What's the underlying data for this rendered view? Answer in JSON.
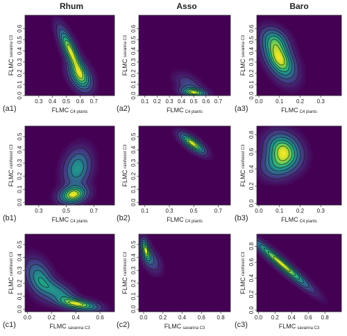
{
  "figure": {
    "column_titles": [
      "Rhum",
      "Asso",
      "Baro"
    ],
    "colors": {
      "background": "#440154",
      "viridis": [
        "#440154",
        "#46337e",
        "#365c8d",
        "#277f8e",
        "#1fa187",
        "#4ac16d",
        "#a0da39",
        "#fde725"
      ],
      "contour": "#111111",
      "axis": "#333333"
    }
  },
  "chart_data": [
    {
      "id": "a1",
      "type": "heatmap",
      "label": "(a1)",
      "x_main": "FLMC",
      "x_sub": "C4 plants",
      "y_main": "FLMC",
      "y_sub": "savanna C3",
      "xlim": [
        0.2,
        0.85
      ],
      "ylim": [
        0,
        0.72
      ],
      "xticks": [
        "0.3",
        "0.4",
        "0.5",
        "0.6",
        "0.7"
      ],
      "xtick_values": [
        0.3,
        0.4,
        0.5,
        0.6,
        0.7
      ],
      "yticks": [
        "0.0",
        "0.1",
        "0.2",
        "0.3",
        "0.4",
        "0.5",
        "0.6"
      ],
      "ytick_values": [
        0,
        0.1,
        0.2,
        0.3,
        0.4,
        0.5,
        0.6
      ],
      "density_blobs": [
        {
          "x": 0.53,
          "y": 0.4,
          "sx": 0.05,
          "sy": 0.12,
          "rho": -0.8,
          "w": 1.0
        },
        {
          "x": 0.6,
          "y": 0.18,
          "sx": 0.05,
          "sy": 0.08,
          "rho": -0.4,
          "w": 0.8
        }
      ]
    },
    {
      "id": "a2",
      "type": "heatmap",
      "label": "(a2)",
      "x_main": "FLMC",
      "x_sub": "C4 plants",
      "y_main": "FLMC",
      "y_sub": "savanna C3",
      "xlim": [
        0.05,
        0.8
      ],
      "ylim": [
        0,
        0.72
      ],
      "xticks": [
        "0.1",
        "0.2",
        "0.3",
        "0.4",
        "0.5",
        "0.6",
        "0.7"
      ],
      "xtick_values": [
        0.1,
        0.2,
        0.3,
        0.4,
        0.5,
        0.6,
        0.7
      ],
      "yticks": [
        "0.0",
        "0.1",
        "0.2",
        "0.3",
        "0.4",
        "0.5",
        "0.6"
      ],
      "ytick_values": [
        0,
        0.1,
        0.2,
        0.3,
        0.4,
        0.5,
        0.6
      ],
      "density_blobs": [
        {
          "x": 0.5,
          "y": 0.03,
          "sx": 0.06,
          "sy": 0.025,
          "rho": -0.3,
          "w": 1.0
        },
        {
          "x": 0.46,
          "y": 0.1,
          "sx": 0.07,
          "sy": 0.06,
          "rho": -0.5,
          "w": 0.25
        }
      ]
    },
    {
      "id": "a3",
      "type": "heatmap",
      "label": "(a3)",
      "x_main": "FLMC",
      "x_sub": "C4 plants",
      "y_main": "FLMC",
      "y_sub": "savanna C3",
      "xlim": [
        -0.01,
        0.4
      ],
      "ylim": [
        0,
        0.72
      ],
      "xticks": [
        "0.0",
        "0.1",
        "0.2",
        "0.3"
      ],
      "xtick_values": [
        0,
        0.1,
        0.2,
        0.3
      ],
      "yticks": [
        "0.0",
        "0.1",
        "0.2",
        "0.3",
        "0.4",
        "0.5",
        "0.6"
      ],
      "ytick_values": [
        0,
        0.1,
        0.2,
        0.3,
        0.4,
        0.5,
        0.6
      ],
      "density_blobs": [
        {
          "x": 0.1,
          "y": 0.33,
          "sx": 0.045,
          "sy": 0.11,
          "rho": -0.5,
          "w": 1.0
        },
        {
          "x": 0.08,
          "y": 0.5,
          "sx": 0.04,
          "sy": 0.07,
          "rho": -0.3,
          "w": 0.45
        }
      ]
    },
    {
      "id": "b1",
      "type": "heatmap",
      "label": "(b1)",
      "x_main": "FLMC",
      "x_sub": "C4 plants",
      "y_main": "FLMC",
      "y_sub": "rainforest C3",
      "xlim": [
        0.2,
        0.85
      ],
      "ylim": [
        -0.02,
        0.58
      ],
      "xticks": [
        "0.3",
        "0.5",
        "0.7"
      ],
      "xtick_values": [
        0.3,
        0.5,
        0.7
      ],
      "yticks": [
        "0.0",
        "0.1",
        "0.2",
        "0.3",
        "0.4",
        "0.5"
      ],
      "ytick_values": [
        0,
        0.1,
        0.2,
        0.3,
        0.4,
        0.5
      ],
      "density_blobs": [
        {
          "x": 0.55,
          "y": 0.06,
          "sx": 0.06,
          "sy": 0.04,
          "rho": 0.2,
          "w": 1.0
        },
        {
          "x": 0.58,
          "y": 0.26,
          "sx": 0.06,
          "sy": 0.09,
          "rho": 0.2,
          "w": 0.55
        }
      ]
    },
    {
      "id": "b2",
      "type": "heatmap",
      "label": "(b2)",
      "x_main": "FLMC",
      "x_sub": "C4 plants",
      "y_main": "FLMC",
      "y_sub": "rainforest C3",
      "xlim": [
        0.05,
        0.8
      ],
      "ylim": [
        -0.02,
        0.58
      ],
      "xticks": [
        "0.1",
        "0.3",
        "0.5",
        "0.7"
      ],
      "xtick_values": [
        0.1,
        0.3,
        0.5,
        0.7
      ],
      "yticks": [
        "0.0",
        "0.1",
        "0.2",
        "0.3",
        "0.4",
        "0.5"
      ],
      "ytick_values": [
        0,
        0.1,
        0.2,
        0.3,
        0.4,
        0.5
      ],
      "density_blobs": [
        {
          "x": 0.49,
          "y": 0.45,
          "sx": 0.06,
          "sy": 0.045,
          "rho": -0.75,
          "w": 1.0
        }
      ]
    },
    {
      "id": "b3",
      "type": "heatmap",
      "label": "(b3)",
      "x_main": "FLMC",
      "x_sub": "C4 plants",
      "y_main": "FLMC",
      "y_sub": "rainforest C3",
      "xlim": [
        -0.01,
        0.4
      ],
      "ylim": [
        -0.02,
        0.9
      ],
      "xticks": [
        "0.0",
        "0.1",
        "0.2",
        "0.3"
      ],
      "xtick_values": [
        0,
        0.1,
        0.2,
        0.3
      ],
      "yticks": [
        "0.0",
        "0.2",
        "0.4",
        "0.6",
        "0.8"
      ],
      "ytick_values": [
        0,
        0.2,
        0.4,
        0.6,
        0.8
      ],
      "density_blobs": [
        {
          "x": 0.12,
          "y": 0.62,
          "sx": 0.05,
          "sy": 0.12,
          "rho": -0.2,
          "w": 1.0
        },
        {
          "x": 0.09,
          "y": 0.45,
          "sx": 0.05,
          "sy": 0.1,
          "rho": 0.1,
          "w": 0.5
        }
      ]
    },
    {
      "id": "c1",
      "type": "heatmap",
      "label": "(c1)",
      "x_main": "FLMC",
      "x_sub": "savanna C3",
      "y_main": "FLMC",
      "y_sub": "rainforest C3",
      "xlim": [
        -0.02,
        0.72
      ],
      "ylim": [
        -0.02,
        0.58
      ],
      "xticks": [
        "0.0",
        "0.2",
        "0.4",
        "0.6"
      ],
      "xtick_values": [
        0,
        0.2,
        0.4,
        0.6
      ],
      "yticks": [
        "0.0",
        "0.1",
        "0.2",
        "0.3",
        "0.4",
        "0.5"
      ],
      "ytick_values": [
        0,
        0.1,
        0.2,
        0.3,
        0.4,
        0.5
      ],
      "density_blobs": [
        {
          "x": 0.42,
          "y": 0.04,
          "sx": 0.1,
          "sy": 0.03,
          "rho": -0.5,
          "w": 1.0
        },
        {
          "x": 0.1,
          "y": 0.24,
          "sx": 0.07,
          "sy": 0.09,
          "rho": -0.4,
          "w": 0.55
        },
        {
          "x": 0.26,
          "y": 0.13,
          "sx": 0.09,
          "sy": 0.06,
          "rho": -0.6,
          "w": 0.5
        }
      ]
    },
    {
      "id": "c2",
      "type": "heatmap",
      "label": "(c2)",
      "x_main": "FLMC",
      "x_sub": "savanna C3",
      "y_main": "FLMC",
      "y_sub": "rainforest C3",
      "xlim": [
        -0.05,
        0.9
      ],
      "ylim": [
        -0.02,
        0.58
      ],
      "xticks": [
        "0.0",
        "0.2",
        "0.4",
        "0.6",
        "0.8"
      ],
      "xtick_values": [
        0,
        0.2,
        0.4,
        0.6,
        0.8
      ],
      "yticks": [
        "0.0",
        "0.1",
        "0.2",
        "0.3",
        "0.4",
        "0.5"
      ],
      "ytick_values": [
        0,
        0.1,
        0.2,
        0.3,
        0.4,
        0.5
      ],
      "density_blobs": [
        {
          "x": 0.02,
          "y": 0.46,
          "sx": 0.03,
          "sy": 0.05,
          "rho": -0.4,
          "w": 1.0
        },
        {
          "x": 0.08,
          "y": 0.38,
          "sx": 0.06,
          "sy": 0.06,
          "rho": -0.5,
          "w": 0.3
        }
      ]
    },
    {
      "id": "c3",
      "type": "heatmap",
      "label": "(c3)",
      "x_main": "FLMC",
      "x_sub": "savanna C3",
      "y_main": "FLMC",
      "y_sub": "rainforest C3",
      "xlim": [
        -0.02,
        1.0
      ],
      "ylim": [
        -0.02,
        0.95
      ],
      "xticks": [
        "0.0",
        "0.2",
        "0.4",
        "0.6",
        "0.8"
      ],
      "xtick_values": [
        0,
        0.2,
        0.4,
        0.6,
        0.8
      ],
      "yticks": [
        "0.0",
        "0.2",
        "0.4",
        "0.6",
        "0.8"
      ],
      "ytick_values": [
        0,
        0.2,
        0.4,
        0.6,
        0.8
      ],
      "density_blobs": [
        {
          "x": 0.28,
          "y": 0.58,
          "sx": 0.2,
          "sy": 0.18,
          "rho": -0.96,
          "w": 1.0
        }
      ]
    }
  ]
}
